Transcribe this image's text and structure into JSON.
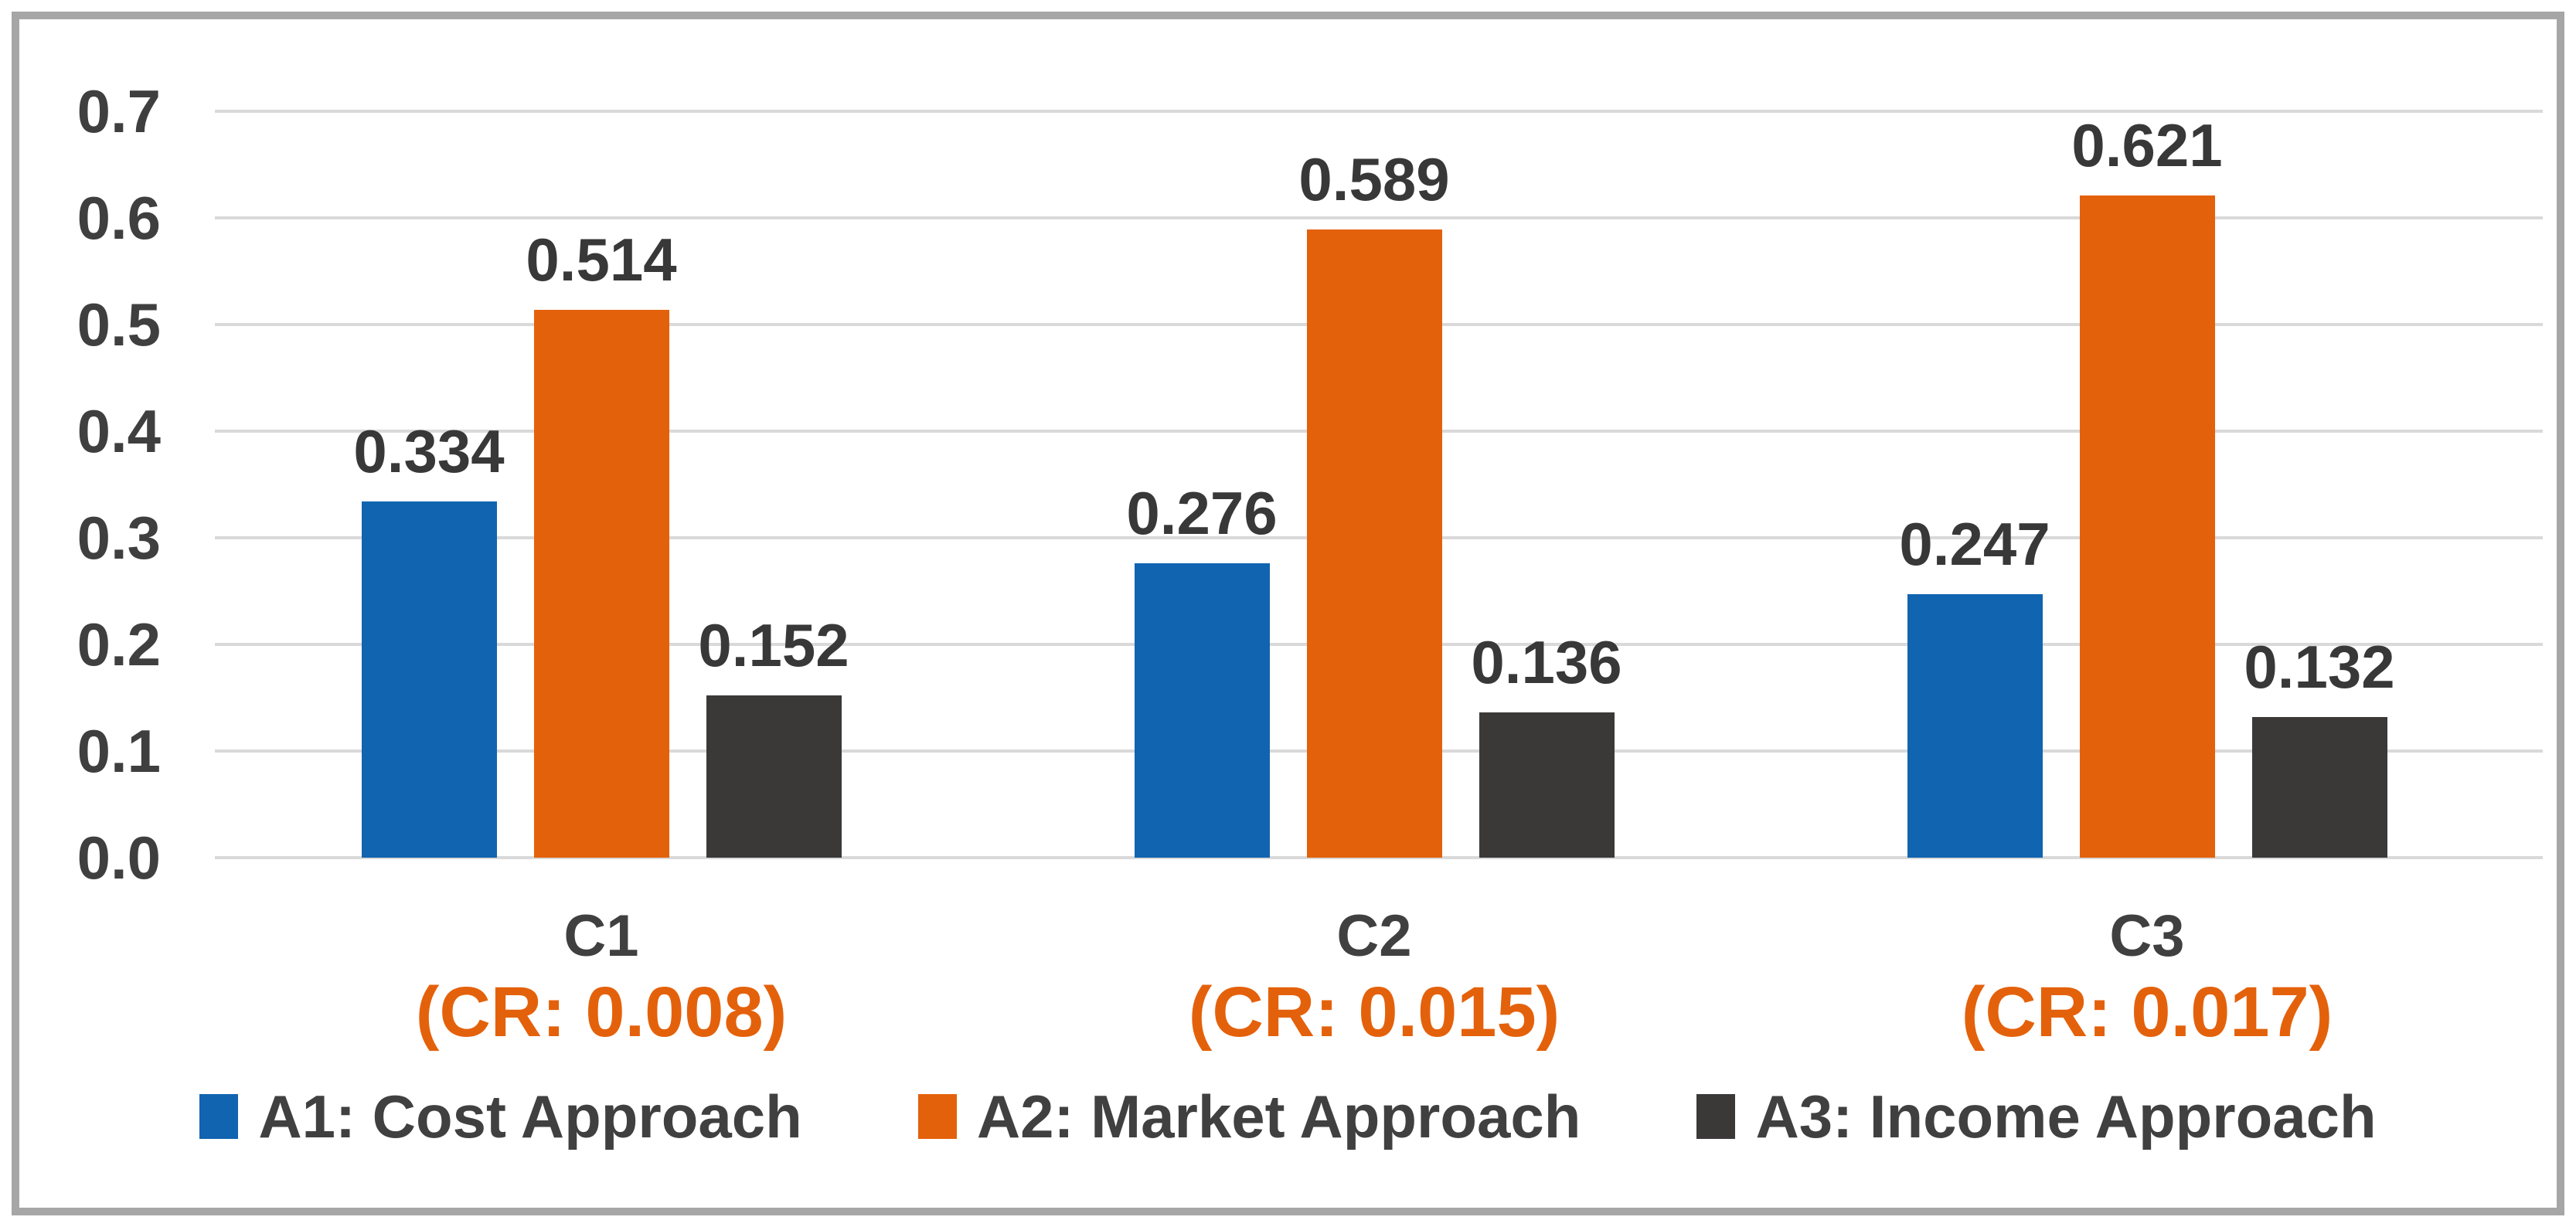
{
  "chart_data": {
    "type": "bar",
    "title": "",
    "xlabel": "",
    "ylabel": "",
    "categories": [
      "C1",
      "C2",
      "C3"
    ],
    "category_sublabels": [
      "(CR: 0.008)",
      "(CR: 0.015)",
      "(CR: 0.017)"
    ],
    "series": [
      {
        "name": "A1: Cost Approach",
        "color": "#1164B0",
        "values": [
          0.334,
          0.276,
          0.247
        ]
      },
      {
        "name": "A2: Market Approach",
        "color": "#E4610B",
        "values": [
          0.514,
          0.589,
          0.621
        ]
      },
      {
        "name": "A3: Income Approach",
        "color": "#3B3838",
        "values": [
          0.152,
          0.136,
          0.132
        ]
      }
    ],
    "data_labels": [
      [
        "0.334",
        "0.514",
        "0.152"
      ],
      [
        "0.276",
        "0.589",
        "0.136"
      ],
      [
        "0.247",
        "0.621",
        "0.132"
      ]
    ],
    "y_ticks": [
      "0.0",
      "0.1",
      "0.2",
      "0.3",
      "0.4",
      "0.5",
      "0.6",
      "0.7"
    ],
    "ylim": [
      0.0,
      0.7
    ],
    "grid": true,
    "legend_position": "bottom"
  },
  "colors": {
    "frame_border": "#A6A6A6",
    "gridline": "#D9D9D9",
    "tick_text": "#3F3F3F",
    "data_label_text": "#383838",
    "category_text": "#404040",
    "cr_text": "#E4610B",
    "background": "#FFFFFF"
  }
}
